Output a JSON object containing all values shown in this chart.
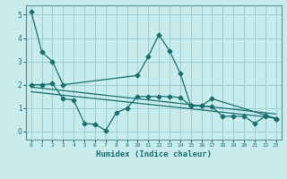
{
  "xlabel": "Humidex (Indice chaleur)",
  "bg_color": "#c8ecec",
  "grid_color": "#9ecece",
  "line_color": "#1a7070",
  "spine_color": "#5a9090",
  "xlim": [
    -0.5,
    23.5
  ],
  "ylim": [
    -0.35,
    5.4
  ],
  "yticks": [
    0,
    1,
    2,
    3,
    4,
    5
  ],
  "xticks": [
    0,
    1,
    2,
    3,
    4,
    5,
    6,
    7,
    8,
    9,
    10,
    11,
    12,
    13,
    14,
    15,
    16,
    17,
    18,
    19,
    20,
    21,
    22,
    23
  ],
  "series1_x": [
    0,
    1,
    2,
    3,
    10,
    11,
    12,
    13,
    14,
    15,
    16,
    17,
    22,
    23
  ],
  "series1_y": [
    5.15,
    3.4,
    3.0,
    2.0,
    2.4,
    3.2,
    4.15,
    3.45,
    2.5,
    1.1,
    1.1,
    1.4,
    0.7,
    0.55
  ],
  "series2_x": [
    0,
    1,
    2,
    3,
    4,
    5,
    6,
    7,
    8,
    9,
    10,
    11,
    12,
    13,
    14,
    15,
    16,
    17,
    18,
    19,
    20,
    21,
    22,
    23
  ],
  "series2_y": [
    2.0,
    2.0,
    2.05,
    1.4,
    1.35,
    0.35,
    0.3,
    0.05,
    0.8,
    1.0,
    1.5,
    1.5,
    1.5,
    1.5,
    1.45,
    1.1,
    1.1,
    1.05,
    0.65,
    0.65,
    0.65,
    0.35,
    0.65,
    0.55
  ],
  "series3_x": [
    0,
    23
  ],
  "series3_y": [
    1.9,
    0.75
  ],
  "series4_x": [
    0,
    23
  ],
  "series4_y": [
    1.7,
    0.58
  ]
}
